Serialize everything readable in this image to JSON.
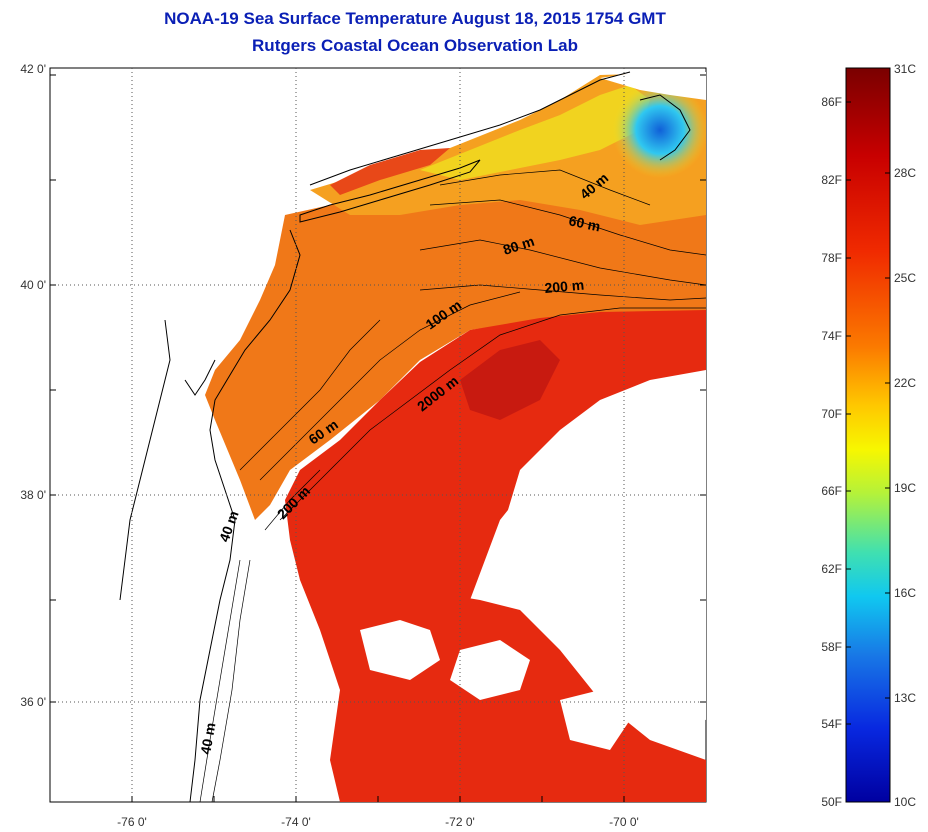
{
  "title": {
    "line1": "NOAA-19 Sea Surface Temperature August 18, 2015 1754 GMT",
    "line2": "Rutgers Coastal Ocean Observation Lab"
  },
  "axes": {
    "lat_labels": [
      "42 0'",
      "40 0'",
      "38 0'",
      "36 0'"
    ],
    "lon_labels": [
      "-76 0'",
      "-74 0'",
      "-72 0'",
      "-70 0'"
    ]
  },
  "contour_labels": [
    "40 m",
    "60 m",
    "80 m",
    "200 m",
    "100 m",
    "2000 m",
    "60 m",
    "200 m",
    "40 m",
    "40 m"
  ],
  "colorbar": {
    "left_labels": [
      "86F",
      "82F",
      "78F",
      "74F",
      "70F",
      "66F",
      "62F",
      "58F",
      "54F",
      "50F"
    ],
    "right_labels": [
      "31C",
      "28C",
      "25C",
      "22C",
      "19C",
      "16C",
      "13C",
      "10C"
    ],
    "colors": [
      "#7a0000",
      "#c80000",
      "#f02a00",
      "#fb7a00",
      "#ffc800",
      "#f7f700",
      "#b4f23a",
      "#40e0b0",
      "#10c8f0",
      "#1878e6",
      "#0828e0",
      "#0000a0"
    ]
  },
  "palette": {
    "hot_red": "#e62a10",
    "warm_orange": "#f07818",
    "orange": "#f5a020",
    "yellow": "#f0dc20",
    "cool_cyan": "#30c8f0",
    "cold_blue": "#1060d8"
  }
}
